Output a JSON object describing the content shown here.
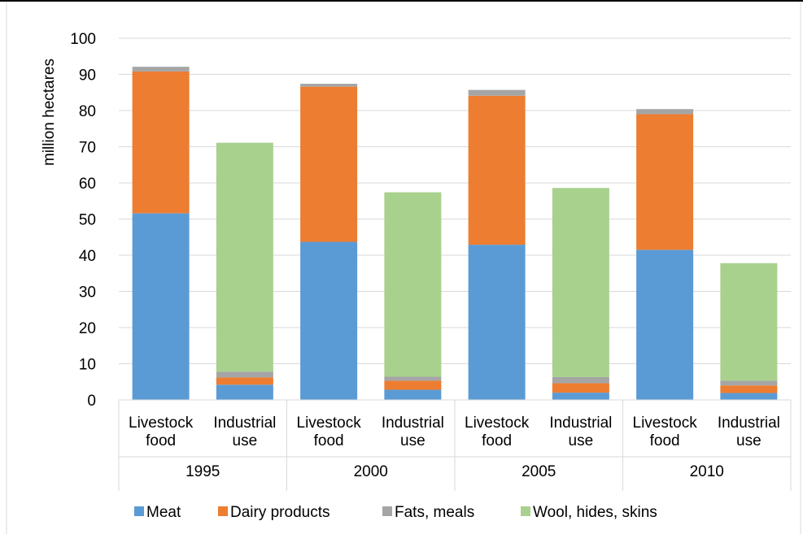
{
  "chart_data": {
    "type": "bar",
    "stacked": true,
    "ylabel": "million hectares",
    "ylim": [
      0,
      100
    ],
    "yticks": [
      0,
      10,
      20,
      30,
      40,
      50,
      60,
      70,
      80,
      90,
      100
    ],
    "grid": true,
    "legend_position": "bottom",
    "groups": [
      "1995",
      "2000",
      "2005",
      "2010"
    ],
    "subcategories": [
      [
        "Livestock",
        "food"
      ],
      [
        "Industrial",
        "use"
      ]
    ],
    "categories": [
      "1995 Livestock food",
      "1995 Industrial use",
      "2000 Livestock food",
      "2000 Industrial use",
      "2005 Livestock food",
      "2005 Industrial use",
      "2010 Livestock food",
      "2010 Industrial use"
    ],
    "series": [
      {
        "name": "Meat",
        "color": "#5b9bd5",
        "values": [
          51.6,
          4.2,
          43.7,
          2.8,
          42.9,
          2.0,
          41.5,
          1.9
        ]
      },
      {
        "name": "Dairy products",
        "color": "#ed7d31",
        "values": [
          39.2,
          2.0,
          42.9,
          2.5,
          41.2,
          2.6,
          37.5,
          2.1
        ]
      },
      {
        "name": "Fats, meals",
        "color": "#a5a5a5",
        "values": [
          1.3,
          1.6,
          0.8,
          1.1,
          1.6,
          1.7,
          1.4,
          1.3
        ]
      },
      {
        "name": "Wool, hides, skins",
        "color": "#a9d18e",
        "values": [
          0,
          63.3,
          0,
          51.0,
          0,
          52.3,
          0,
          32.5
        ]
      }
    ]
  }
}
